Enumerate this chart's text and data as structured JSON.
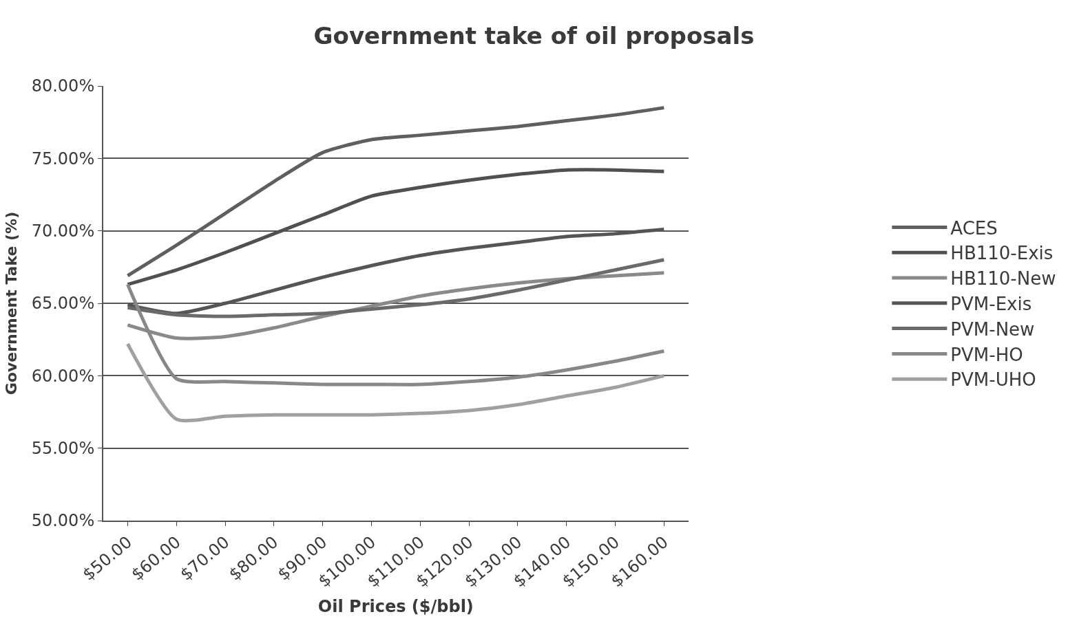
{
  "chart_data": {
    "type": "line",
    "title": "Government take of oil proposals",
    "xlabel": "Oil Prices ($/bbl)",
    "ylabel": "Government Take (%)",
    "categories": [
      "$50.00",
      "$60.00",
      "$70.00",
      "$80.00",
      "$90.00",
      "$100.00",
      "$110.00",
      "$120.00",
      "$130.00",
      "$140.00",
      "$150.00",
      "$160.00"
    ],
    "series": [
      {
        "name": "ACES",
        "color": "#5f5f5f",
        "values": [
          66.9,
          69.0,
          71.2,
          73.4,
          75.4,
          76.3,
          76.6,
          76.9,
          77.2,
          77.6,
          78.0,
          78.5
        ]
      },
      {
        "name": "HB110-Exis",
        "color": "#505050",
        "values": [
          66.3,
          67.3,
          68.5,
          69.8,
          71.1,
          72.4,
          73.0,
          73.5,
          73.9,
          74.2,
          74.2,
          74.1
        ]
      },
      {
        "name": "HB110-New",
        "color": "#8a8a8a",
        "values": [
          63.5,
          62.6,
          62.7,
          63.3,
          64.1,
          64.8,
          65.5,
          66.0,
          66.4,
          66.7,
          66.9,
          67.1
        ]
      },
      {
        "name": "PVM-Exis",
        "color": "#555555",
        "values": [
          64.9,
          64.3,
          65.0,
          65.9,
          66.8,
          67.6,
          68.3,
          68.8,
          69.2,
          69.6,
          69.8,
          70.1
        ]
      },
      {
        "name": "PVM-New",
        "color": "#6a6a6a",
        "values": [
          64.7,
          64.2,
          64.1,
          64.2,
          64.3,
          64.6,
          64.9,
          65.3,
          65.9,
          66.6,
          67.3,
          68.0
        ]
      },
      {
        "name": "PVM-HO",
        "color": "#888888",
        "values": [
          66.3,
          59.8,
          59.6,
          59.5,
          59.4,
          59.4,
          59.4,
          59.6,
          59.9,
          60.4,
          61.0,
          61.7
        ]
      },
      {
        "name": "PVM-UHO",
        "color": "#a0a0a0",
        "values": [
          62.2,
          57.0,
          57.2,
          57.3,
          57.3,
          57.3,
          57.4,
          57.6,
          58.0,
          58.6,
          59.2,
          60.0
        ]
      }
    ],
    "ylim": [
      50,
      80
    ],
    "yticks": [
      {
        "value": 50,
        "label": "50.00%"
      },
      {
        "value": 55,
        "label": "55.00%"
      },
      {
        "value": 60,
        "label": "60.00%"
      },
      {
        "value": 65,
        "label": "65.00%"
      },
      {
        "value": 70,
        "label": "70.00%"
      },
      {
        "value": 75,
        "label": "75.00%"
      },
      {
        "value": 80,
        "label": "80.00%"
      }
    ],
    "grid": "y",
    "legend": "right",
    "marker": "none",
    "line_style": "solid"
  }
}
